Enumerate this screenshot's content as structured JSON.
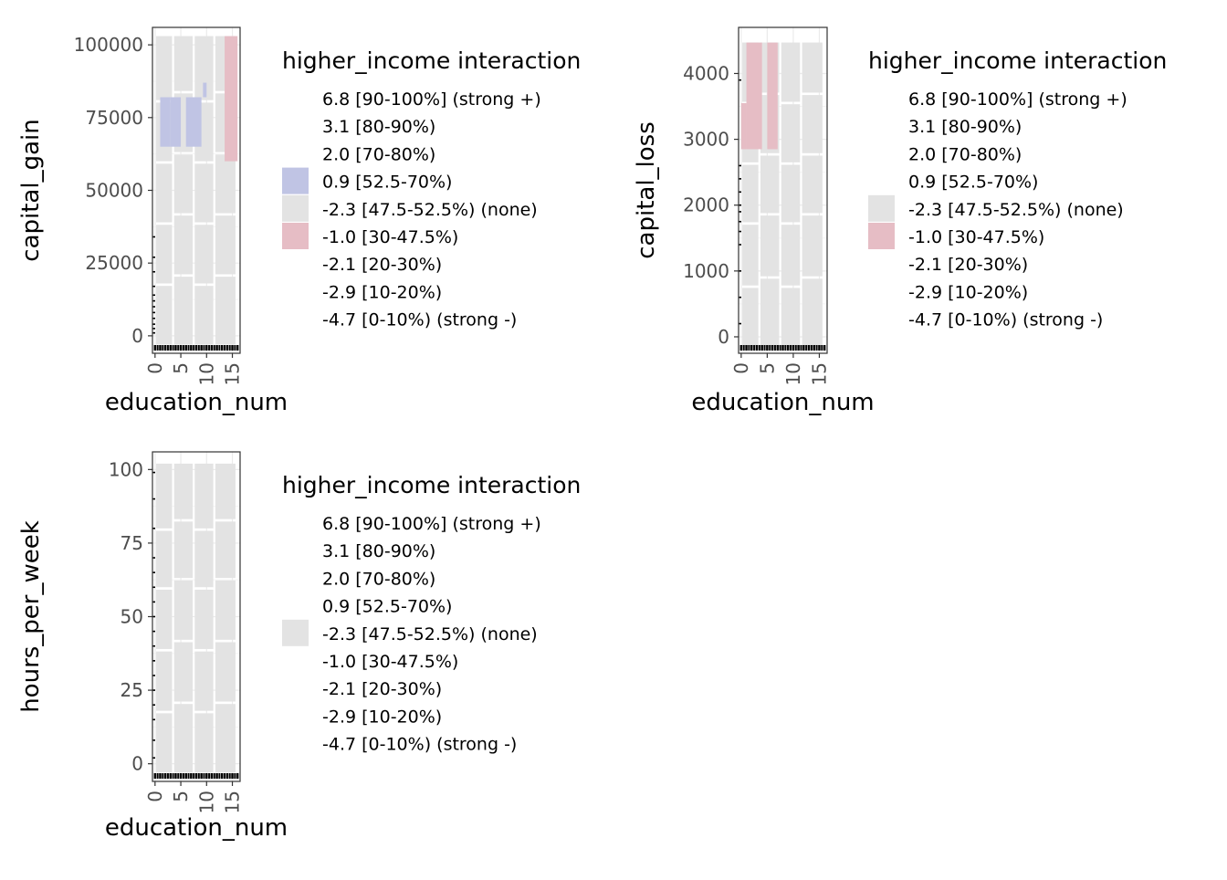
{
  "chart_data": [
    {
      "type": "heatmap",
      "title": "",
      "xlabel": "education_num",
      "ylabel": "capital_gain",
      "xlim": [
        -0.5,
        16.5
      ],
      "ylim": [
        -6000,
        106000
      ],
      "x_ticks": [
        0,
        5,
        10,
        15
      ],
      "y_ticks": [
        0,
        25000,
        50000,
        75000,
        100000
      ],
      "y_tick_labels": [
        "0",
        "25000",
        "50000",
        "75000",
        "100000"
      ],
      "grid": true,
      "legend_position": "right",
      "legend_title": "higher_income interaction",
      "legend_entries": [
        {
          "label": "6.8 [90-100%] (strong +)",
          "color": null
        },
        {
          "label": "3.1 [80-90%)",
          "color": null
        },
        {
          "label": "2.0 [70-80%)",
          "color": null
        },
        {
          "label": "0.9 [52.5-70%)",
          "color": "#c0c4e4"
        },
        {
          "label": "-2.3 [47.5-52.5%) (none)",
          "color": "#e3e3e3"
        },
        {
          "label": "-1.0 [30-47.5%)",
          "color": "#e6bdc5"
        },
        {
          "label": "-2.1 [20-30%)",
          "color": null
        },
        {
          "label": "-2.9 [10-20%)",
          "color": null
        },
        {
          "label": "-4.7 [0-10%) (strong -)",
          "color": null
        }
      ],
      "tiles": [
        {
          "x": [
            1,
            3
          ],
          "y": [
            65000,
            82000
          ],
          "class": "0.9 [52.5-70%)"
        },
        {
          "x": [
            3,
            5
          ],
          "y": [
            65000,
            82000
          ],
          "class": "0.9 [52.5-70%)"
        },
        {
          "x": [
            6,
            9
          ],
          "y": [
            65000,
            82000
          ],
          "class": "0.9 [52.5-70%)"
        },
        {
          "x": [
            9.3,
            10
          ],
          "y": [
            82000,
            87000
          ],
          "class": "0.9 [52.5-70%)"
        },
        {
          "x": [
            13.5,
            16
          ],
          "y": [
            60000,
            103000
          ],
          "class": "-1.0 [30-47.5%)"
        }
      ],
      "background_class": "-2.3 [47.5-52.5%) (none)",
      "rug_points": [
        {
          "x": 0,
          "y": 1000
        },
        {
          "x": 0,
          "y": 4000
        },
        {
          "x": 0,
          "y": 8000
        },
        {
          "x": 0,
          "y": 12000
        },
        {
          "x": 0,
          "y": 17000
        },
        {
          "x": 0,
          "y": 22000
        },
        {
          "x": 0,
          "y": 27000
        },
        {
          "x": 0,
          "y": 34000
        },
        {
          "x": 0,
          "y": 2500
        },
        {
          "x": 0,
          "y": 6000
        },
        {
          "x": 0,
          "y": 10000
        },
        {
          "x": 0,
          "y": 14000
        }
      ]
    },
    {
      "type": "heatmap",
      "title": "",
      "xlabel": "education_num",
      "ylabel": "capital_loss",
      "xlim": [
        -0.5,
        16.5
      ],
      "ylim": [
        -250,
        4700
      ],
      "x_ticks": [
        0,
        5,
        10,
        15
      ],
      "y_ticks": [
        0,
        1000,
        2000,
        3000,
        4000
      ],
      "y_tick_labels": [
        "0",
        "1000",
        "2000",
        "3000",
        "4000"
      ],
      "grid": true,
      "legend_position": "right",
      "legend_title": "higher_income interaction",
      "legend_entries": [
        {
          "label": "6.8 [90-100%] (strong +)",
          "color": null
        },
        {
          "label": "3.1 [80-90%)",
          "color": null
        },
        {
          "label": "2.0 [70-80%)",
          "color": null
        },
        {
          "label": "0.9 [52.5-70%)",
          "color": null
        },
        {
          "label": "-2.3 [47.5-52.5%) (none)",
          "color": "#e3e3e3"
        },
        {
          "label": "-1.0 [30-47.5%)",
          "color": "#e6bdc5"
        },
        {
          "label": "-2.1 [20-30%)",
          "color": null
        },
        {
          "label": "-2.9 [10-20%)",
          "color": null
        },
        {
          "label": "-4.7 [0-10%) (strong -)",
          "color": null
        }
      ],
      "tiles": [
        {
          "x": [
            1,
            4
          ],
          "y": [
            2850,
            4470
          ],
          "class": "-1.0 [30-47.5%)"
        },
        {
          "x": [
            5,
            7
          ],
          "y": [
            2850,
            4470
          ],
          "class": "-1.0 [30-47.5%)"
        },
        {
          "x": [
            0,
            1
          ],
          "y": [
            2850,
            3550
          ],
          "class": "-1.0 [30-47.5%)"
        }
      ],
      "background_class": "-2.3 [47.5-52.5%) (none)",
      "rug_points": [
        {
          "x": 0,
          "y": 200
        },
        {
          "x": 0,
          "y": 600
        },
        {
          "x": 0,
          "y": 1000
        },
        {
          "x": 0,
          "y": 1400
        },
        {
          "x": 0,
          "y": 1600
        },
        {
          "x": 0,
          "y": 1750
        },
        {
          "x": 0,
          "y": 1900
        },
        {
          "x": 0,
          "y": 2000
        },
        {
          "x": 0,
          "y": 2200
        },
        {
          "x": 0,
          "y": 2400
        },
        {
          "x": 0,
          "y": 2600
        },
        {
          "x": 0,
          "y": 3900
        }
      ]
    },
    {
      "type": "heatmap",
      "title": "",
      "xlabel": "education_num",
      "ylabel": "hours_per_week",
      "xlim": [
        -0.5,
        16.5
      ],
      "ylim": [
        -6,
        106
      ],
      "x_ticks": [
        0,
        5,
        10,
        15
      ],
      "y_ticks": [
        0,
        25,
        50,
        75,
        100
      ],
      "y_tick_labels": [
        "0",
        "25",
        "50",
        "75",
        "100"
      ],
      "grid": true,
      "legend_position": "right",
      "legend_title": "higher_income interaction",
      "legend_entries": [
        {
          "label": "6.8 [90-100%] (strong +)",
          "color": null
        },
        {
          "label": "3.1 [80-90%)",
          "color": null
        },
        {
          "label": "2.0 [70-80%)",
          "color": null
        },
        {
          "label": "0.9 [52.5-70%)",
          "color": null
        },
        {
          "label": "-2.3 [47.5-52.5%) (none)",
          "color": "#e3e3e3"
        },
        {
          "label": "-1.0 [30-47.5%)",
          "color": null
        },
        {
          "label": "-2.1 [20-30%)",
          "color": null
        },
        {
          "label": "-2.9 [10-20%)",
          "color": null
        },
        {
          "label": "-4.7 [0-10%) (strong -)",
          "color": null
        }
      ],
      "tiles": [],
      "background_class": "-2.3 [47.5-52.5%) (none)",
      "rug_points": [
        {
          "x": 0,
          "y": 2
        },
        {
          "x": 0,
          "y": 8
        },
        {
          "x": 0,
          "y": 15
        },
        {
          "x": 0,
          "y": 20
        },
        {
          "x": 0,
          "y": 25
        },
        {
          "x": 0,
          "y": 30
        },
        {
          "x": 0,
          "y": 35
        },
        {
          "x": 0,
          "y": 40
        },
        {
          "x": 0,
          "y": 45
        },
        {
          "x": 0,
          "y": 50
        },
        {
          "x": 0,
          "y": 55
        },
        {
          "x": 0,
          "y": 60
        },
        {
          "x": 0,
          "y": 65
        },
        {
          "x": 0,
          "y": 70
        },
        {
          "x": 0,
          "y": 80
        },
        {
          "x": 0,
          "y": 90
        },
        {
          "x": 0,
          "y": 99
        }
      ]
    }
  ]
}
